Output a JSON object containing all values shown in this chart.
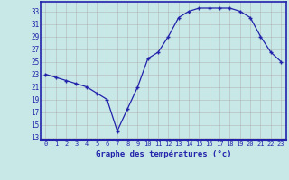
{
  "hours": [
    0,
    1,
    2,
    3,
    4,
    5,
    6,
    7,
    8,
    9,
    10,
    11,
    12,
    13,
    14,
    15,
    16,
    17,
    18,
    19,
    20,
    21,
    22,
    23
  ],
  "temps": [
    23,
    22.5,
    22,
    21.5,
    21,
    20,
    19,
    14,
    17.5,
    21,
    25.5,
    26.5,
    29,
    32,
    33,
    33.5,
    33.5,
    33.5,
    33.5,
    33,
    32,
    29,
    26.5,
    25
  ],
  "line_color": "#2222aa",
  "marker_color": "#2222aa",
  "bg_color": "#c8e8e8",
  "grid_color": "#aaaaaa",
  "xlabel": "Graphe des températures (°c)",
  "ylim": [
    12.5,
    34.5
  ],
  "yticks": [
    13,
    15,
    17,
    19,
    21,
    23,
    25,
    27,
    29,
    31,
    33
  ],
  "xticks": [
    0,
    1,
    2,
    3,
    4,
    5,
    6,
    7,
    8,
    9,
    10,
    11,
    12,
    13,
    14,
    15,
    16,
    17,
    18,
    19,
    20,
    21,
    22,
    23
  ],
  "border_color": "#2222aa"
}
